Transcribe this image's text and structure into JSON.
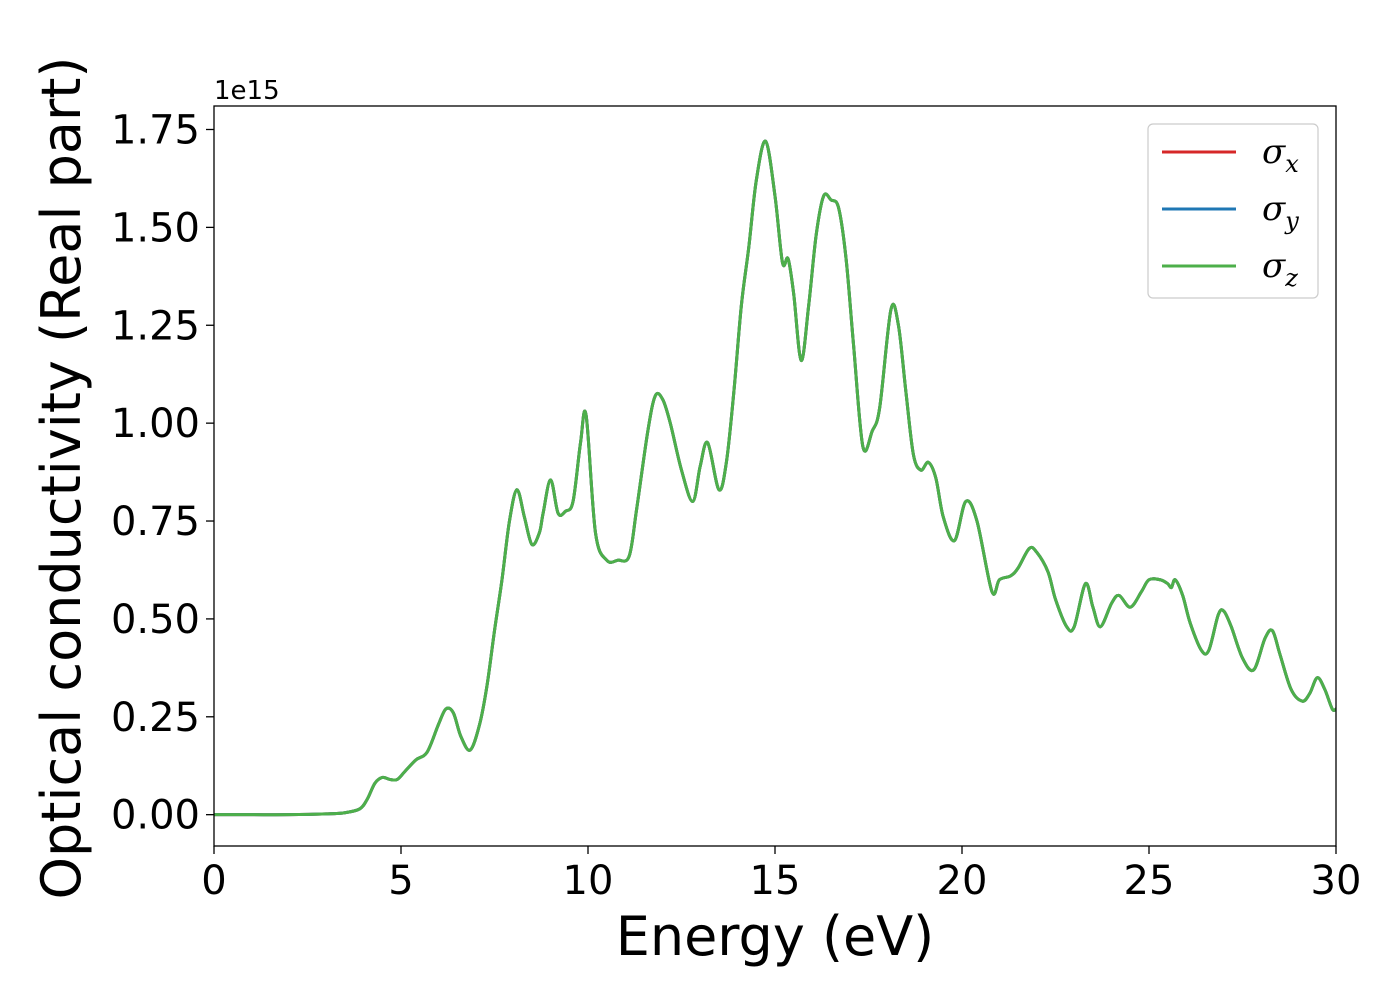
{
  "chart_data": {
    "type": "line",
    "title": "",
    "xlabel": "Energy (eV)",
    "ylabel": "Optical conductivity (Real part)",
    "y_offset_label": "1e15",
    "xlim": [
      0,
      30
    ],
    "ylim": [
      -0.08,
      1.81
    ],
    "xticks": [
      0,
      5,
      10,
      15,
      20,
      25,
      30
    ],
    "xtick_labels": [
      "0",
      "5",
      "10",
      "15",
      "20",
      "25",
      "30"
    ],
    "yticks": [
      0.0,
      0.25,
      0.5,
      0.75,
      1.0,
      1.25,
      1.5,
      1.75
    ],
    "ytick_labels": [
      "0.00",
      "0.25",
      "0.50",
      "0.75",
      "1.00",
      "1.25",
      "1.50",
      "1.75"
    ],
    "grid": false,
    "legend_position": "top-right",
    "series": [
      {
        "name": "σ_x",
        "legend_base": "σ",
        "legend_sub": "x",
        "color": "#d62728"
      },
      {
        "name": "σ_y",
        "legend_base": "σ",
        "legend_sub": "y",
        "color": "#1f77b4"
      },
      {
        "name": "σ_z",
        "legend_base": "σ",
        "legend_sub": "z",
        "color": "#4daf4a"
      }
    ],
    "x": [
      0,
      1,
      2,
      3,
      3.5,
      3.9,
      4.1,
      4.3,
      4.5,
      4.7,
      4.9,
      5.1,
      5.4,
      5.7,
      6.0,
      6.2,
      6.4,
      6.6,
      6.85,
      7.1,
      7.3,
      7.5,
      7.7,
      7.9,
      8.1,
      8.3,
      8.5,
      8.7,
      8.8,
      9.0,
      9.2,
      9.4,
      9.6,
      9.8,
      9.95,
      10.2,
      10.5,
      10.8,
      11.1,
      11.3,
      11.6,
      11.8,
      12.0,
      12.2,
      12.5,
      12.8,
      13.0,
      13.2,
      13.5,
      13.7,
      13.9,
      14.1,
      14.3,
      14.5,
      14.75,
      15.0,
      15.2,
      15.35,
      15.5,
      15.7,
      15.9,
      16.1,
      16.3,
      16.5,
      16.7,
      16.9,
      17.1,
      17.35,
      17.6,
      17.8,
      18.1,
      18.3,
      18.5,
      18.7,
      18.9,
      19.1,
      19.3,
      19.5,
      19.8,
      20.1,
      20.4,
      20.8,
      21.0,
      21.3,
      21.5,
      21.8,
      22.0,
      22.3,
      22.5,
      22.8,
      23.0,
      23.3,
      23.5,
      23.7,
      24.0,
      24.2,
      24.5,
      24.8,
      25.0,
      25.3,
      25.5,
      25.6,
      25.7,
      25.9,
      26.1,
      26.4,
      26.6,
      26.85,
      27.0,
      27.2,
      27.5,
      27.8,
      28.1,
      28.3,
      28.5,
      28.8,
      29.1,
      29.3,
      29.5,
      29.7,
      29.9,
      30.0
    ],
    "values": [
      0.0,
      0.0,
      0.0,
      0.002,
      0.005,
      0.015,
      0.04,
      0.08,
      0.095,
      0.09,
      0.09,
      0.11,
      0.14,
      0.16,
      0.23,
      0.27,
      0.26,
      0.2,
      0.165,
      0.23,
      0.33,
      0.47,
      0.6,
      0.75,
      0.83,
      0.76,
      0.69,
      0.72,
      0.77,
      0.855,
      0.77,
      0.775,
      0.8,
      0.95,
      1.02,
      0.72,
      0.65,
      0.65,
      0.66,
      0.78,
      0.98,
      1.07,
      1.06,
      1.0,
      0.88,
      0.8,
      0.89,
      0.95,
      0.83,
      0.9,
      1.08,
      1.3,
      1.45,
      1.62,
      1.72,
      1.58,
      1.41,
      1.42,
      1.33,
      1.16,
      1.3,
      1.48,
      1.58,
      1.57,
      1.55,
      1.42,
      1.2,
      0.94,
      0.98,
      1.04,
      1.29,
      1.25,
      1.08,
      0.92,
      0.88,
      0.9,
      0.86,
      0.76,
      0.7,
      0.8,
      0.75,
      0.57,
      0.6,
      0.61,
      0.63,
      0.68,
      0.67,
      0.62,
      0.55,
      0.48,
      0.48,
      0.59,
      0.53,
      0.48,
      0.54,
      0.56,
      0.53,
      0.57,
      0.6,
      0.6,
      0.59,
      0.58,
      0.6,
      0.56,
      0.49,
      0.42,
      0.42,
      0.51,
      0.52,
      0.48,
      0.4,
      0.37,
      0.45,
      0.47,
      0.41,
      0.32,
      0.29,
      0.31,
      0.35,
      0.32,
      0.27,
      0.27
    ]
  }
}
